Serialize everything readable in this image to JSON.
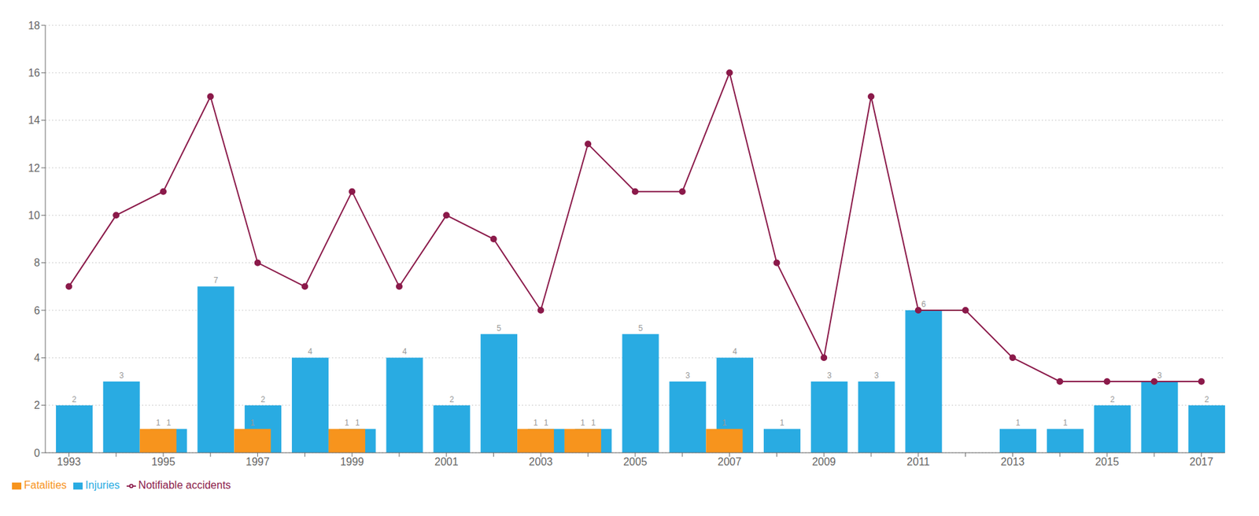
{
  "chart_data": {
    "type": "bar",
    "categories": [
      "1993",
      null,
      "1995",
      null,
      "1997",
      null,
      "1999",
      null,
      "2001",
      null,
      "2003",
      null,
      "2005",
      null,
      "2007",
      null,
      "2009",
      null,
      "2011",
      null,
      "2013",
      null,
      "2015",
      null,
      "2017"
    ],
    "series": [
      {
        "name": "Injuries",
        "type": "bar",
        "color": "#29ABE2",
        "values": [
          2,
          3,
          1,
          7,
          2,
          4,
          1,
          4,
          2,
          5,
          1,
          1,
          5,
          3,
          4,
          1,
          3,
          3,
          6,
          0,
          1,
          1,
          2,
          3,
          2
        ],
        "data_labels": true,
        "value_labels": [
          "2",
          "3",
          "1",
          "7",
          "2",
          "4",
          "1",
          "4",
          "2",
          "5",
          "1",
          "1",
          "5",
          "3",
          "4",
          "1",
          "3",
          "3",
          "6",
          null,
          "1",
          "1",
          "2",
          "3",
          "2"
        ]
      },
      {
        "name": "Fatalities",
        "type": "bar",
        "color": "#F7941D",
        "values": [
          0,
          0,
          1,
          0,
          1,
          0,
          1,
          0,
          0,
          0,
          1,
          1,
          0,
          0,
          1,
          0,
          0,
          0,
          0,
          0,
          0,
          0,
          0,
          0,
          0
        ],
        "data_labels": true,
        "value_labels": [
          null,
          null,
          "1",
          null,
          "1",
          null,
          "1",
          null,
          null,
          null,
          "1",
          "1",
          null,
          null,
          "1",
          null,
          null,
          null,
          null,
          null,
          null,
          null,
          null,
          null,
          null
        ]
      },
      {
        "name": "Notifiable accidents",
        "type": "line",
        "color": "#8B1A4A",
        "marker": "circle",
        "values": [
          7,
          10,
          11,
          15,
          8,
          7,
          11,
          7,
          10,
          9,
          6,
          13,
          11,
          11,
          16,
          8,
          4,
          15,
          6,
          6,
          4,
          3,
          3,
          3,
          3
        ]
      }
    ],
    "ylim": [
      0,
      18
    ],
    "yticks": [
      0,
      2,
      4,
      6,
      8,
      10,
      12,
      14,
      16,
      18
    ],
    "grid": true,
    "legend": "lower left"
  }
}
